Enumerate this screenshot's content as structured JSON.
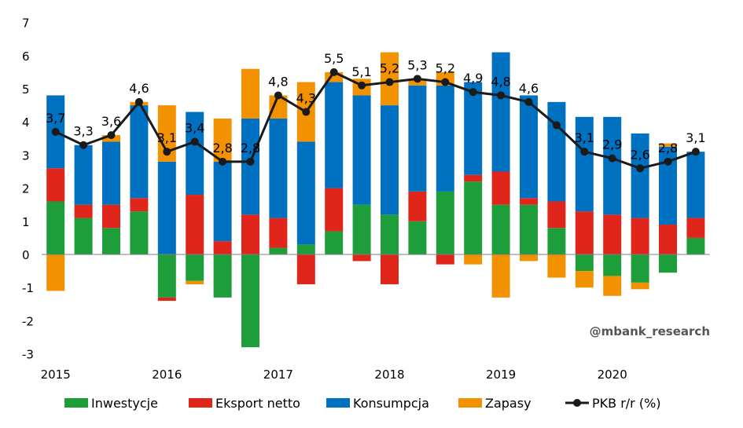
{
  "chart_data": {
    "type": "bar",
    "stacked": true,
    "x_tick_labels": [
      "2015",
      "2016",
      "2017",
      "2018",
      "2019",
      "2020"
    ],
    "y_ticks": [
      "-3",
      "-2",
      "-1",
      "0",
      "1",
      "2",
      "3",
      "4",
      "5",
      "6",
      "7"
    ],
    "ylim": [
      -3,
      7
    ],
    "grid": false,
    "legend_position": "bottom",
    "watermark": "@mbank_research",
    "series": [
      {
        "name": "Inwestycje",
        "color": "#1e9e3a",
        "values": [
          1.6,
          1.1,
          0.8,
          1.3,
          -1.3,
          -0.8,
          -1.3,
          -2.8,
          0.2,
          0.3,
          0.7,
          1.5,
          1.2,
          1.0,
          1.9,
          2.2,
          1.5,
          1.5,
          0.8,
          -0.5,
          -0.65,
          -0.85,
          -0.55,
          0.5
        ]
      },
      {
        "name": "Eksport netto",
        "color": "#e0251b",
        "values": [
          1.0,
          0.4,
          0.7,
          0.4,
          -0.1,
          1.8,
          0.4,
          1.2,
          0.9,
          -0.9,
          1.3,
          -0.2,
          -0.9,
          0.9,
          -0.3,
          0.2,
          1.0,
          0.2,
          0.8,
          1.3,
          1.2,
          1.1,
          0.9,
          0.6
        ]
      },
      {
        "name": "Konsumpcja",
        "color": "#0070c0",
        "values": [
          2.2,
          1.8,
          1.9,
          2.8,
          2.8,
          2.5,
          2.4,
          2.9,
          3.0,
          3.1,
          3.2,
          3.3,
          3.3,
          3.2,
          3.2,
          2.8,
          3.6,
          3.1,
          3.0,
          2.85,
          2.95,
          2.55,
          2.35,
          2.0
        ]
      },
      {
        "name": "Zapasy",
        "color": "#f39200",
        "values": [
          -1.1,
          0.0,
          0.2,
          0.1,
          1.7,
          -0.1,
          1.3,
          1.5,
          0.7,
          1.8,
          0.3,
          0.5,
          1.6,
          0.2,
          0.4,
          -0.3,
          -1.3,
          -0.2,
          -0.7,
          -0.5,
          -0.6,
          -0.2,
          0.1,
          0.0
        ]
      }
    ],
    "line": {
      "name": "PKB r/r (%)",
      "color": "#1a1a1a",
      "values": [
        3.7,
        3.3,
        3.6,
        4.6,
        3.1,
        3.4,
        2.8,
        2.8,
        4.8,
        4.3,
        5.5,
        5.1,
        5.2,
        5.3,
        5.2,
        4.9,
        4.8,
        4.6,
        3.9,
        3.1,
        2.9,
        2.6,
        2.8,
        3.1
      ],
      "labels": [
        "3,7",
        "3,3",
        "3,6",
        "4,6",
        "3,1",
        "3,4",
        "2,8",
        "2,8",
        "4,8",
        "4,3",
        "5,5",
        "5,1",
        "5,2",
        "5,3",
        "5,2",
        "4,9",
        "4,8",
        "4,6",
        "",
        "3,1",
        "2,9",
        "2,6",
        "2,8",
        "3,1"
      ]
    }
  }
}
